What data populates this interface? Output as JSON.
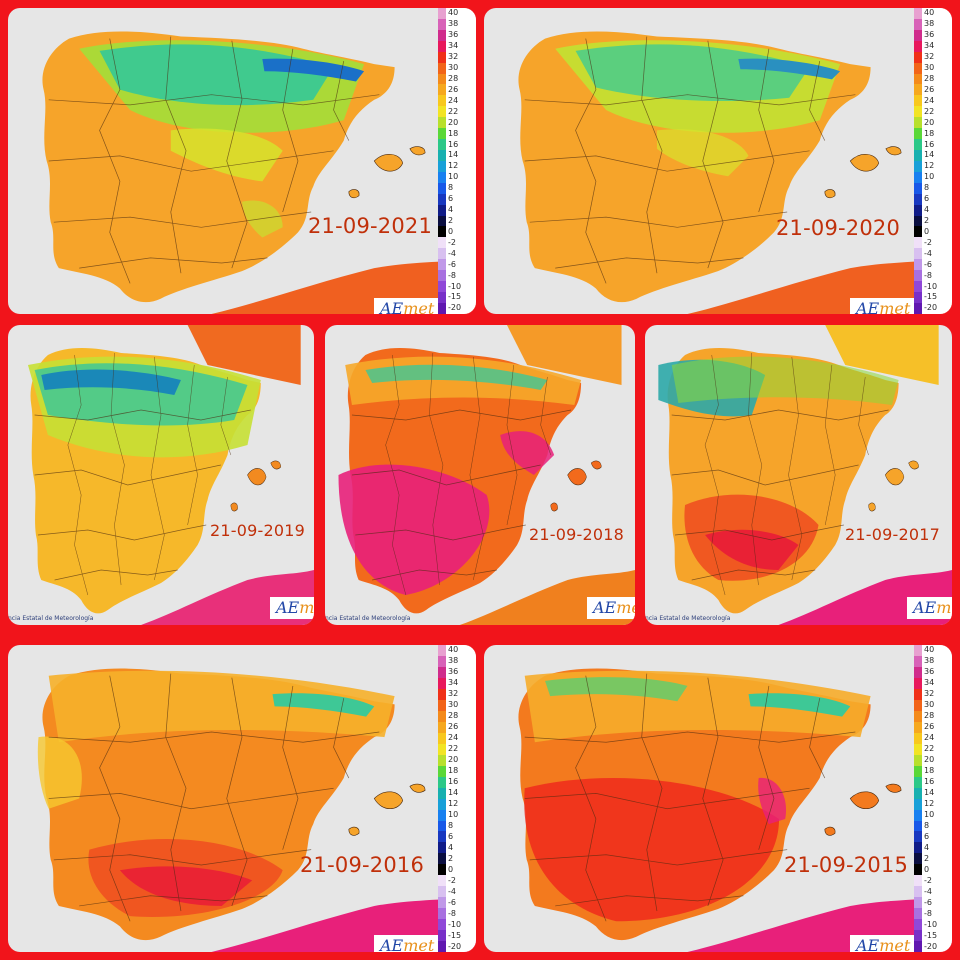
{
  "maps": [
    {
      "date": "21-09-2021",
      "logo": "AEmet",
      "scale": true
    },
    {
      "date": "21-09-2020",
      "logo": "AEmet",
      "scale": true
    },
    {
      "date": "21-09-2019",
      "logo": "AEmet",
      "credit": "ncia Estatal de Meteorología",
      "scale": false
    },
    {
      "date": "21-09-2018",
      "logo": "AEmet",
      "credit": "ncia Estatal de Meteorología",
      "scale": false
    },
    {
      "date": "21-09-2017",
      "logo": "AEmet",
      "credit": "ncia Estatal de Meteorología",
      "scale": false
    },
    {
      "date": "21-09-2016",
      "logo": "AEmet",
      "scale": true
    },
    {
      "date": "21-09-2015",
      "logo": "AEmet",
      "scale": true
    }
  ],
  "legend": {
    "labels": [
      "40",
      "38",
      "36",
      "34",
      "32",
      "30",
      "28",
      "26",
      "24",
      "22",
      "20",
      "18",
      "16",
      "14",
      "12",
      "10",
      "8",
      "6",
      "4",
      "2",
      "0",
      "-2",
      "-4",
      "-6",
      "-8",
      "-10",
      "-15",
      "-20"
    ],
    "colors": [
      "#e8a0d0",
      "#d862b8",
      "#d02c8c",
      "#e8185c",
      "#f03018",
      "#f26418",
      "#f48a1a",
      "#f6a81e",
      "#f8c81e",
      "#f2e424",
      "#b8e02c",
      "#5ad838",
      "#2cc888",
      "#18b0b0",
      "#18a0d8",
      "#1880f0",
      "#1858e8",
      "#1838c0",
      "#101c88",
      "#0a0e40",
      "#000000",
      "#f0e0f8",
      "#d8c0f0",
      "#c098e8",
      "#a870e0",
      "#9048d8",
      "#7830c8",
      "#6018b0"
    ]
  },
  "colors": {
    "frame": "#f1141b",
    "sea": "#e6e6e6",
    "date_text": "#c0300a",
    "logo_blue": "#2348a8",
    "logo_orange": "#e8901a"
  }
}
